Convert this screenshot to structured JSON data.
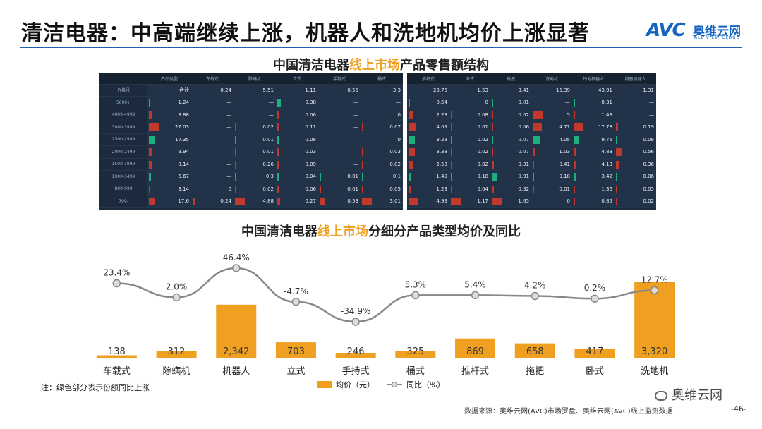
{
  "title": "清洁电器：中高端继续上涨，机器人和洗地机均价上涨显著",
  "logo": {
    "mark": "AVC",
    "cn": "奥维云网",
    "en": "ALL VIEW CLOUD"
  },
  "table_title": {
    "pre": "中国清洁电器",
    "hl": "线上市场",
    "post": "产品零售额结构"
  },
  "chart_title": {
    "pre": "中国清洁电器",
    "hl": "线上市场",
    "post": "分细分产品类型均价及同比"
  },
  "left_table": {
    "headers": [
      "",
      "产品类型",
      "车载式",
      "除螨机",
      "立式",
      "手持式",
      "桶式"
    ],
    "rows": [
      [
        "价格段",
        "合计",
        "0.24",
        "5.51",
        "1.11",
        "0.55",
        "3.3"
      ],
      [
        "5000+",
        "1.24",
        "—",
        "—",
        "0.38",
        "—",
        "—"
      ],
      [
        "4000-4999",
        "8.88",
        "—",
        "—",
        "0.06",
        "—",
        "0"
      ],
      [
        "3000-3999",
        "27.03",
        "—",
        "0.02",
        "0.11",
        "—",
        "0.07"
      ],
      [
        "2500-2999",
        "17.35",
        "—",
        "0.01",
        "0.08",
        "—",
        "0"
      ],
      [
        "2000-2499",
        "9.94",
        "—",
        "0.01",
        "0.03",
        "—",
        "0.03"
      ],
      [
        "1500-1999",
        "8.14",
        "—",
        "0.26",
        "0.09",
        "—",
        "0.02"
      ],
      [
        "1000-1499",
        "6.67",
        "—",
        "0.3",
        "0.04",
        "0.01",
        "0.1"
      ],
      [
        "800-999",
        "3.14",
        "0",
        "0.02",
        "0.06",
        "0.01",
        "0.05"
      ],
      [
        "799-",
        "17.6",
        "0.24",
        "4.88",
        "0.27",
        "0.53",
        "3.01"
      ]
    ]
  },
  "right_table": {
    "headers": [
      "推杆式",
      "卧式",
      "拖把",
      "洗地机",
      "扫地机器人",
      "擦窗机器人"
    ],
    "rows": [
      [
        "23.75",
        "1.53",
        "3.41",
        "15.39",
        "43.91",
        "1.31"
      ],
      [
        "0.54",
        "0",
        "0.01",
        "—",
        "0.31",
        "—"
      ],
      [
        "2.23",
        "0.08",
        "0.02",
        "5",
        "1.48",
        "—"
      ],
      [
        "4.09",
        "0.01",
        "0.06",
        "4.71",
        "17.78",
        "0.19"
      ],
      [
        "3.28",
        "0.02",
        "0.07",
        "4.05",
        "9.75",
        "0.08"
      ],
      [
        "3.38",
        "0.02",
        "0.07",
        "1.03",
        "4.83",
        "0.56"
      ],
      [
        "2.53",
        "0.02",
        "0.31",
        "0.41",
        "4.13",
        "0.36"
      ],
      [
        "1.49",
        "0.18",
        "0.91",
        "0.18",
        "3.42",
        "0.06"
      ],
      [
        "1.23",
        "0.04",
        "0.32",
        "0.01",
        "1.36",
        "0.05"
      ],
      [
        "4.99",
        "1.17",
        "1.65",
        "0",
        "0.85",
        "0.02"
      ]
    ]
  },
  "chart_data": {
    "type": "bar",
    "categories": [
      "车载式",
      "除螨机",
      "机器人",
      "立式",
      "手持式",
      "桶式",
      "推杆式",
      "拖把",
      "卧式",
      "洗地机"
    ],
    "series": [
      {
        "name": "均价（元）",
        "type": "bar",
        "values": [
          138,
          312,
          2342,
          703,
          246,
          325,
          869,
          658,
          417,
          3320
        ],
        "labels": [
          "138",
          "312",
          "2,342",
          "703",
          "246",
          "325",
          "869",
          "658",
          "417",
          "3,320"
        ]
      },
      {
        "name": "同比（%）",
        "type": "line",
        "values": [
          23.4,
          2.0,
          46.4,
          -4.7,
          -34.9,
          5.3,
          5.4,
          4.2,
          0.2,
          12.7
        ],
        "labels": [
          "23.4%",
          "2.0%",
          "46.4%",
          "-4.7%",
          "-34.9%",
          "5.3%",
          "5.4%",
          "4.2%",
          "0.2%",
          "12.7%"
        ]
      }
    ],
    "colors": {
      "bar": "#f0a020",
      "line": "#888888",
      "point_fill": "#dddddd"
    }
  },
  "note": "注：绿色部分表示份额同比上涨",
  "source": "数据来源：奥维云网(AVC)市场罗盘、奥维云网(AVC)线上监测数据",
  "page": "-46-",
  "wechat": "奥维云网",
  "bar_colors": {
    "up": "#1fae7e",
    "down": "#c0392b"
  }
}
